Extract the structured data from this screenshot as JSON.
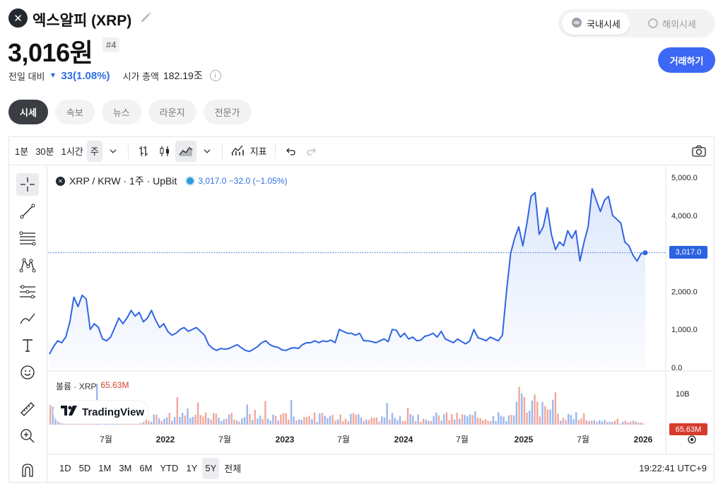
{
  "header": {
    "logo_glyph": "✕",
    "coin_name": "엑스알피 (XRP)",
    "price": "3,016원",
    "rank": "#4",
    "change_label": "전일 대비",
    "change_value": "33(1.08%)",
    "market_cap_label": "시가 총액",
    "market_cap_value": "182.19조",
    "info_glyph": "i"
  },
  "market_toggle": {
    "domestic": "국내시세",
    "overseas": "해외시세",
    "selected": "국내시세"
  },
  "trade_button": "거래하기",
  "tabs": [
    {
      "label": "시세",
      "active": true
    },
    {
      "label": "속보",
      "active": false
    },
    {
      "label": "뉴스",
      "active": false
    },
    {
      "label": "라운지",
      "active": false
    },
    {
      "label": "전문가",
      "active": false
    }
  ],
  "toolbar": {
    "intervals": [
      "1분",
      "30분",
      "1시간",
      "주"
    ],
    "selected_interval": "주",
    "indicator_label": "지표"
  },
  "legend": {
    "logo_glyph": "✕",
    "symbol": "XRP / KRW · 1주 · UpBit",
    "values": "3,017.0  −32.0 (−1.05%)",
    "volume_label": "볼륨 · XRP",
    "volume_value": "65.63M"
  },
  "tv_brand": "TradingView",
  "price_tag": "3,017.0",
  "volume_tag": "65.63M",
  "ranges": [
    "1D",
    "5D",
    "1M",
    "3M",
    "6M",
    "YTD",
    "1Y",
    "5Y",
    "전체"
  ],
  "selected_range": "5Y",
  "clock": "19:22:41 UTC+9",
  "colors": {
    "line": "#2f65e2",
    "fill": "#dce6fb",
    "accent_button": "#3d68f5",
    "vol_up": "#9cb7ee",
    "vol_down": "#f0a89e",
    "last_price_tag": "#2d62e0",
    "volume_tag": "#d63c2d"
  },
  "icons": [
    "x-logo-icon",
    "pencil-icon",
    "info-icon",
    "globe-icon",
    "crosshair-icon",
    "trendline-icon",
    "fib-icon",
    "pattern-icon",
    "projection-icon",
    "brush-icon",
    "text-icon",
    "emoji-icon",
    "ruler-icon",
    "zoom-in-icon",
    "magnet-icon",
    "camera-icon",
    "undo-icon",
    "redo-icon",
    "bar-chart-icon",
    "candle-icon",
    "area-icon",
    "indicator-icon",
    "settings-icon"
  ],
  "chart_data": {
    "type": "area",
    "title": "XRP / KRW · 1주 · UpBit",
    "x_tick_labels": [
      "7월",
      "2022",
      "7월",
      "2023",
      "7월",
      "2024",
      "7월",
      "2025",
      "7월",
      "2026"
    ],
    "y_tick_labels": [
      "5,000.0",
      "4,000.0",
      "3,000.0",
      "2,000.0",
      "1,000.0",
      "0.0"
    ],
    "ylim": [
      0,
      5000
    ],
    "volume_tick_labels": [
      "10B"
    ],
    "grid": false,
    "series": [
      {
        "values": [
          350,
          550,
          700,
          650,
          800,
          1200,
          1850,
          1600,
          1900,
          1800,
          1000,
          1150,
          1050,
          750,
          700,
          800,
          1050,
          1300,
          1150,
          1300,
          1500,
          1350,
          1450,
          1200,
          1300,
          1500,
          1250,
          1050,
          1150,
          950,
          850,
          900,
          1000,
          1050,
          950,
          1000,
          1050,
          950,
          850,
          600,
          500,
          450,
          500,
          480,
          500,
          550,
          600,
          520,
          450,
          420,
          480,
          550,
          650,
          700,
          600,
          550,
          530,
          460,
          450,
          500,
          520,
          500,
          600,
          650,
          650,
          700,
          650,
          700,
          680,
          720,
          650,
          1000,
          950,
          900,
          900,
          850,
          900,
          700,
          700,
          680,
          650,
          700,
          750,
          680,
          1000,
          980,
          800,
          900,
          750,
          800,
          700,
          720,
          820,
          850,
          900,
          800,
          950,
          750,
          700,
          650,
          750,
          680,
          620,
          700,
          1000,
          780,
          750,
          700,
          800,
          750,
          700,
          850,
          2000,
          3000,
          3400,
          3700,
          3200,
          3800,
          4500,
          4600,
          3500,
          3700,
          4200,
          3500,
          3100,
          3300,
          3200,
          3600,
          3400,
          3600,
          2800,
          3300,
          3700,
          4700,
          4400,
          4100,
          4400,
          4500,
          4000,
          3900,
          3800,
          3300,
          3200,
          2950,
          2800,
          3000,
          3017
        ]
      }
    ]
  }
}
